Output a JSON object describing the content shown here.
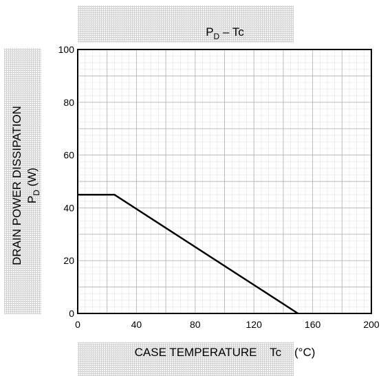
{
  "chart_data": {
    "type": "line",
    "title": {
      "main": "P",
      "sub": "D",
      "rest": " – Tc"
    },
    "xlabel": "CASE TEMPERATURE    Tc    (°C)",
    "ylabel": {
      "line1": "DRAIN POWER DISSIPATION",
      "line2_main": "P",
      "line2_sub": "D",
      "line2_rest": "    (W)"
    },
    "xlim": [
      0,
      200
    ],
    "ylim": [
      0,
      100
    ],
    "xticks": [
      0,
      40,
      80,
      120,
      160,
      200
    ],
    "yticks": [
      0,
      20,
      40,
      60,
      80,
      100
    ],
    "grid": true,
    "series": [
      {
        "x": [
          0,
          25,
          150
        ],
        "y": [
          45,
          45,
          0
        ]
      }
    ]
  }
}
